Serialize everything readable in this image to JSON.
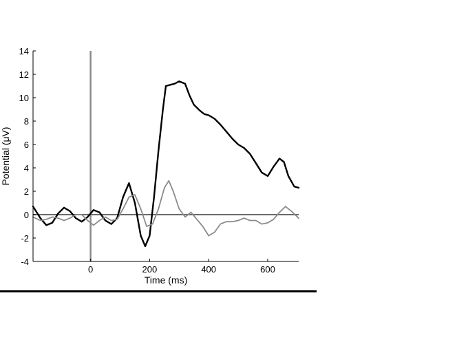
{
  "chart_data": {
    "type": "line",
    "xlabel": "Time (ms)",
    "ylabel": "Potential (μV)",
    "xlim": [
      -195,
      705
    ],
    "ylim": [
      -4,
      14
    ],
    "x_ticks": [
      0,
      200,
      400,
      600
    ],
    "y_ticks": [
      -4,
      -2,
      0,
      2,
      4,
      6,
      8,
      10,
      12,
      14
    ],
    "x_tick_labels": [
      "0",
      "200",
      "400",
      "600"
    ],
    "y_tick_labels": [
      "-4",
      "-2",
      "0",
      "2",
      "4",
      "6",
      "8",
      "10",
      "12",
      "14"
    ],
    "grid": false,
    "legend": "none",
    "reference_lines": [
      {
        "axis": "x",
        "value": 0,
        "color": "#8a8a8a"
      },
      {
        "axis": "y",
        "value": 0,
        "color": "#6a6a6a"
      }
    ],
    "series": [
      {
        "color": "#000000",
        "x": [
          -195,
          -170,
          -150,
          -130,
          -110,
          -90,
          -70,
          -50,
          -30,
          -10,
          10,
          30,
          50,
          70,
          90,
          110,
          130,
          150,
          170,
          185,
          200,
          215,
          230,
          245,
          255,
          270,
          285,
          300,
          320,
          335,
          350,
          370,
          385,
          400,
          420,
          440,
          460,
          480,
          500,
          520,
          540,
          560,
          580,
          600,
          620,
          640,
          655,
          670,
          690,
          705
        ],
        "y": [
          0.7,
          -0.3,
          -0.9,
          -0.7,
          0.1,
          0.6,
          0.3,
          -0.3,
          -0.6,
          -0.2,
          0.4,
          0.2,
          -0.5,
          -0.8,
          -0.3,
          1.5,
          2.7,
          1.0,
          -1.8,
          -2.7,
          -1.8,
          1.5,
          5.5,
          9.0,
          11.0,
          11.1,
          11.2,
          11.4,
          11.2,
          10.2,
          9.4,
          8.9,
          8.6,
          8.5,
          8.2,
          7.7,
          7.1,
          6.5,
          6.0,
          5.7,
          5.2,
          4.4,
          3.6,
          3.3,
          4.1,
          4.8,
          4.5,
          3.3,
          2.4,
          2.3
        ]
      },
      {
        "color": "#8a8a8a",
        "x": [
          -195,
          -170,
          -150,
          -130,
          -110,
          -90,
          -70,
          -50,
          -30,
          -10,
          10,
          30,
          50,
          70,
          90,
          110,
          130,
          150,
          170,
          190,
          210,
          230,
          250,
          265,
          280,
          300,
          320,
          340,
          360,
          380,
          400,
          420,
          440,
          460,
          480,
          500,
          520,
          540,
          560,
          580,
          600,
          620,
          640,
          660,
          680,
          705
        ],
        "y": [
          -0.2,
          -0.5,
          -0.4,
          -0.2,
          -0.3,
          -0.5,
          -0.3,
          0.0,
          0.0,
          -0.5,
          -0.9,
          -0.5,
          -0.2,
          -0.5,
          -0.4,
          0.5,
          1.5,
          1.7,
          0.5,
          -1.0,
          -0.8,
          0.5,
          2.3,
          2.9,
          2.0,
          0.5,
          -0.2,
          0.2,
          -0.4,
          -1.0,
          -1.8,
          -1.5,
          -0.8,
          -0.6,
          -0.6,
          -0.5,
          -0.3,
          -0.5,
          -0.5,
          -0.8,
          -0.7,
          -0.4,
          0.2,
          0.7,
          0.3,
          -0.3
        ]
      }
    ]
  }
}
